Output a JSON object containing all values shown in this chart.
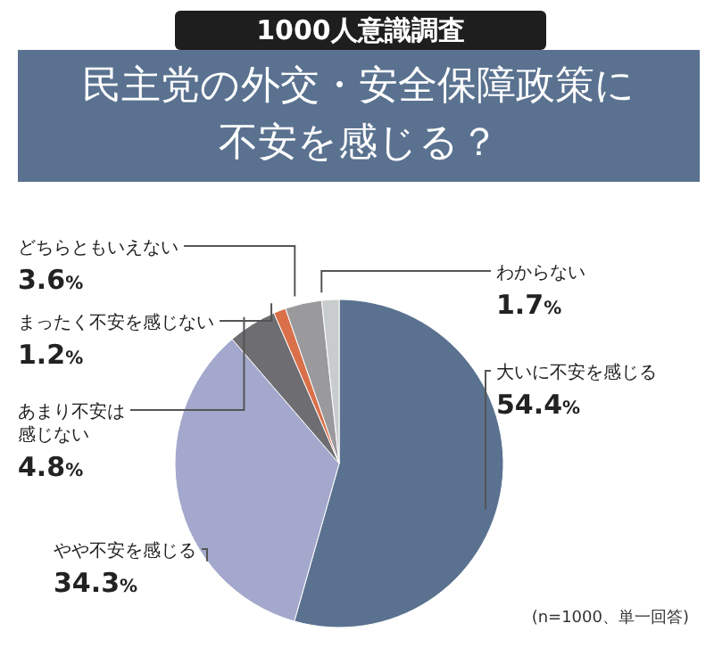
{
  "chart_data": {
    "type": "pie",
    "subtitle": "1000人意識調査",
    "title": "民主党の外交・安全保障政策に不安を感じる？",
    "categories": [
      "大いに不安を感じる",
      "やや不安を感じる",
      "あまり不安は感じない",
      "まったく不安を感じない",
      "どちらともいえない",
      "わからない"
    ],
    "values": [
      54.4,
      34.3,
      4.8,
      1.2,
      3.6,
      1.7
    ],
    "value_labels": [
      "54.4%",
      "34.3%",
      "4.8%",
      "1.2%",
      "3.6%",
      "1.7%"
    ],
    "colors": [
      "#5a7290",
      "#a3a8cc",
      "#6e6e72",
      "#d9704a",
      "#9a9a9c",
      "#c9cccc"
    ],
    "annotations": [
      "(n=1000、単一回答)"
    ]
  }
}
